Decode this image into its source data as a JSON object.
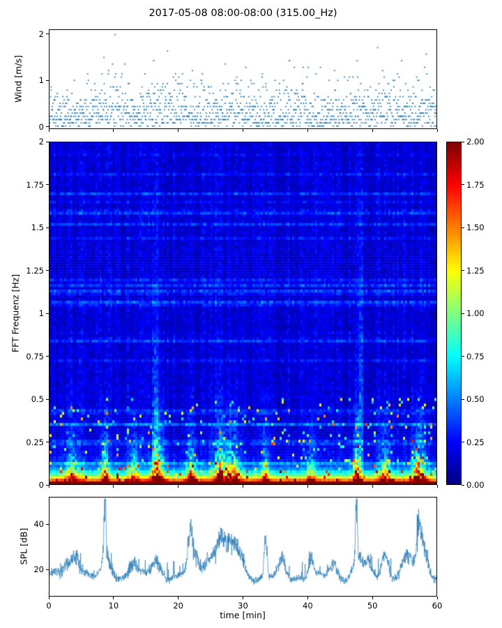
{
  "title": "2017-05-08 08:00-08:00 (315.00_Hz)",
  "xlabel": "time [min]",
  "xlim": [
    0,
    60
  ],
  "x_tick_labels": [
    "0",
    "10",
    "20",
    "30",
    "40",
    "50",
    "60"
  ],
  "chart_data": [
    {
      "type": "scatter",
      "name": "wind-speed",
      "ylabel": "Wind [m/s]",
      "ylim": [
        -0.05,
        2.1
      ],
      "y_tick_labels": [
        "0",
        "1",
        "2"
      ],
      "marker_color": "#1f77b4",
      "marker": "point",
      "quantization_step_ms": 0.0714,
      "value_range_ms": [
        0,
        2
      ],
      "gust_times_min": [
        8.5,
        10.5,
        17,
        20,
        24,
        28,
        33,
        38,
        47.5,
        52,
        57
      ]
    },
    {
      "type": "heatmap",
      "name": "spectrogram",
      "ylabel": "FFT Frequenz [Hz]",
      "ylim": [
        0,
        2
      ],
      "y_tick_labels": [
        "0",
        "0.25",
        "0.5",
        "0.75",
        "1",
        "1.25",
        "1.5",
        "1.75",
        "2"
      ],
      "colormap": "jet",
      "vmin": 0,
      "vmax": 2,
      "background_level": 0.18,
      "low_freq_band": {
        "cutoff_hz": 0.05,
        "level": 2.0
      },
      "tall_column_times": [
        16.5,
        48.3
      ],
      "events": [
        {
          "t_min": 3.5,
          "amp": 0.45,
          "width_min": 1.2
        },
        {
          "t_min": 8.6,
          "amp": 0.7,
          "width_min": 0.5
        },
        {
          "t_min": 13.0,
          "amp": 0.5,
          "width_min": 0.8
        },
        {
          "t_min": 16.8,
          "amp": 0.85,
          "width_min": 1.0
        },
        {
          "t_min": 22.0,
          "amp": 0.55,
          "width_min": 0.8
        },
        {
          "t_min": 26.5,
          "amp": 0.7,
          "width_min": 1.2
        },
        {
          "t_min": 28.5,
          "amp": 0.65,
          "width_min": 1.0
        },
        {
          "t_min": 33.5,
          "amp": 0.5,
          "width_min": 0.5
        },
        {
          "t_min": 40.5,
          "amp": 0.45,
          "width_min": 0.6
        },
        {
          "t_min": 47.6,
          "amp": 0.9,
          "width_min": 0.5
        },
        {
          "t_min": 52.0,
          "amp": 0.55,
          "width_min": 0.8
        },
        {
          "t_min": 57.3,
          "amp": 0.85,
          "width_min": 1.0
        }
      ]
    },
    {
      "type": "line",
      "name": "spl",
      "ylabel": "SPL [dB]",
      "ylim": [
        8,
        52
      ],
      "y_tick_labels": [
        "20",
        "40"
      ],
      "line_color": "#1f77b4",
      "baseline_db": 16.5,
      "events": [
        {
          "t_min": 3.0,
          "amp": 6,
          "width_min": 1.5
        },
        {
          "t_min": 4.3,
          "amp": 7,
          "width_min": 0.8
        },
        {
          "t_min": 8.6,
          "amp": 24,
          "width_min": 0.25
        },
        {
          "t_min": 8.9,
          "amp": 8,
          "width_min": 1.0
        },
        {
          "t_min": 13.0,
          "amp": 7,
          "width_min": 0.8
        },
        {
          "t_min": 16.5,
          "amp": 6,
          "width_min": 1.2
        },
        {
          "t_min": 21.8,
          "amp": 13,
          "width_min": 0.5
        },
        {
          "t_min": 22.3,
          "amp": 8,
          "width_min": 1.0
        },
        {
          "t_min": 25.0,
          "amp": 9,
          "width_min": 1.5
        },
        {
          "t_min": 26.5,
          "amp": 13,
          "width_min": 0.8
        },
        {
          "t_min": 28.0,
          "amp": 13,
          "width_min": 1.2
        },
        {
          "t_min": 29.5,
          "amp": 8,
          "width_min": 1.0
        },
        {
          "t_min": 33.5,
          "amp": 16,
          "width_min": 0.3
        },
        {
          "t_min": 36.0,
          "amp": 6,
          "width_min": 0.8
        },
        {
          "t_min": 40.5,
          "amp": 10,
          "width_min": 0.5
        },
        {
          "t_min": 44.0,
          "amp": 5,
          "width_min": 0.8
        },
        {
          "t_min": 47.6,
          "amp": 30,
          "width_min": 0.18
        },
        {
          "t_min": 47.9,
          "amp": 9,
          "width_min": 0.9
        },
        {
          "t_min": 49.5,
          "amp": 6,
          "width_min": 0.7
        },
        {
          "t_min": 52.0,
          "amp": 11,
          "width_min": 0.7
        },
        {
          "t_min": 55.5,
          "amp": 8,
          "width_min": 1.2
        },
        {
          "t_min": 57.3,
          "amp": 16,
          "width_min": 0.5
        },
        {
          "t_min": 58.0,
          "amp": 12,
          "width_min": 1.0
        }
      ]
    }
  ],
  "colorbar": {
    "tick_labels": [
      "2.00",
      "1.75",
      "1.50",
      "1.25",
      "1.00",
      "0.75",
      "0.50",
      "0.25",
      "0.00"
    ],
    "vmin": 0,
    "vmax": 2
  }
}
